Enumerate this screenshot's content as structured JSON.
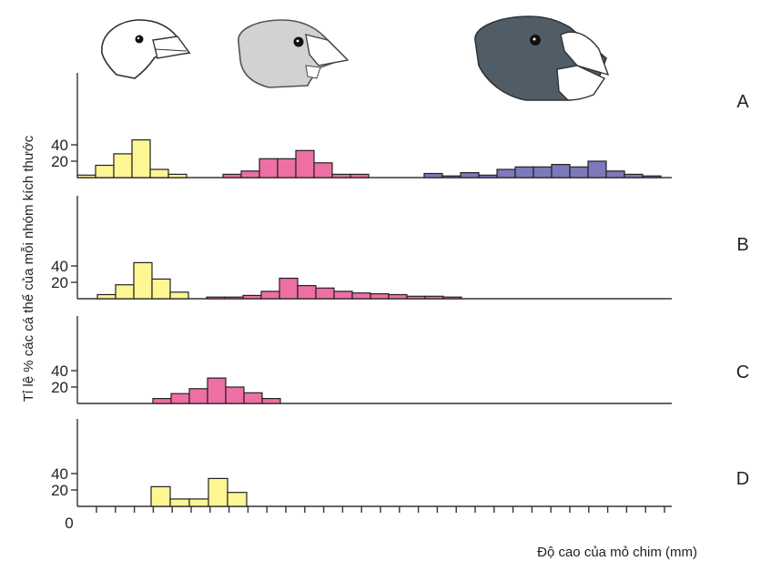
{
  "chart_data": {
    "type": "bar",
    "subtype": "histogram",
    "ylabel": "Tỉ lệ % các cá thể của mỗi nhóm kích thước",
    "xlabel": "Độ cao của mỏ chim (mm)",
    "x_origin_label": "0",
    "y_ticks": [
      20,
      40
    ],
    "colors": {
      "yellow": "#fef693",
      "pink": "#ee6fa3",
      "purple": "#7e79bb"
    },
    "icons": [
      "small-beak-finch-head-icon",
      "medium-beak-finch-head-icon",
      "large-beak-finch-head-icon"
    ],
    "panels": [
      {
        "label": "A",
        "ylim": [
          0,
          50
        ],
        "series": [
          {
            "color": "yellow",
            "values": [
              3,
              15,
              29,
              46,
              10,
              4
            ]
          },
          {
            "color": "pink",
            "values": [
              4,
              8,
              23,
              23,
              33,
              18,
              4,
              4
            ]
          },
          {
            "color": "purple",
            "values": [
              5,
              2,
              6,
              3,
              10,
              13,
              13,
              16,
              13,
              20,
              8,
              4,
              2
            ]
          }
        ]
      },
      {
        "label": "B",
        "ylim": [
          0,
          50
        ],
        "series": [
          {
            "color": "yellow",
            "values": [
              5,
              17,
              44,
              24,
              8
            ]
          },
          {
            "color": "pink",
            "values": [
              2,
              2,
              4,
              9,
              25,
              16,
              13,
              9,
              7,
              6,
              5,
              3,
              3,
              2
            ]
          }
        ]
      },
      {
        "label": "C",
        "ylim": [
          0,
          50
        ],
        "series": [
          {
            "color": "pink",
            "values": [
              6,
              12,
              18,
              31,
              20,
              13,
              6
            ]
          }
        ]
      },
      {
        "label": "D",
        "ylim": [
          0,
          50
        ],
        "series": [
          {
            "color": "yellow",
            "values": [
              24,
              9,
              9,
              34,
              17
            ]
          }
        ]
      }
    ]
  }
}
